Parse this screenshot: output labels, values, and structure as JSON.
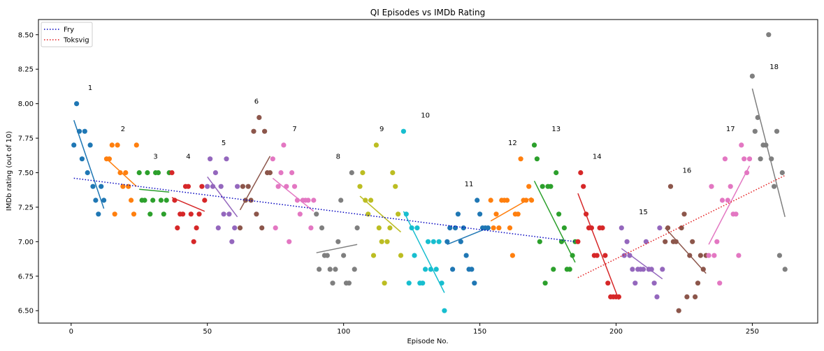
{
  "chart_data": {
    "type": "scatter",
    "title": "QI Episodes vs IMDb Rating",
    "xlabel": "Episode No.",
    "ylabel": "IMDb rating (out of 10)",
    "xlim": [
      -12,
      274
    ],
    "ylim": [
      6.41,
      8.61
    ],
    "xticks": [
      0,
      50,
      100,
      150,
      200,
      250
    ],
    "yticks": [
      6.5,
      6.75,
      7.0,
      7.25,
      7.5,
      7.75,
      8.0,
      8.25,
      8.5
    ],
    "ytick_labels": [
      "6.50",
      "6.75",
      "7.00",
      "7.25",
      "7.50",
      "7.75",
      "8.00",
      "8.25",
      "8.50"
    ],
    "grid": false,
    "legend_position": "top-left",
    "trend_lines": [
      {
        "name": "Fry",
        "color": "#0000bf",
        "style": "dotted",
        "x": [
          1,
          185
        ],
        "y": [
          7.46,
          7.0
        ]
      },
      {
        "name": "Toksvig",
        "color": "#e31a1c",
        "style": "dotted",
        "x": [
          186,
          262
        ],
        "y": [
          6.74,
          7.48
        ]
      }
    ],
    "series": [
      {
        "label": "1",
        "color": "#1f77b4",
        "x": [
          1,
          2,
          3,
          4,
          5,
          6,
          7,
          8,
          9,
          10,
          11,
          12
        ],
        "y": [
          7.7,
          8.0,
          7.8,
          7.6,
          7.8,
          7.5,
          7.7,
          7.4,
          7.3,
          7.2,
          7.4,
          7.3
        ],
        "fit": [
          [
            1,
            7.88
          ],
          [
            12,
            7.24
          ]
        ],
        "label_pos": [
          7,
          8.1
        ]
      },
      {
        "label": "2",
        "color": "#ff7f0e",
        "x": [
          13,
          14,
          15,
          16,
          17,
          18,
          19,
          20,
          21,
          22,
          23,
          24
        ],
        "y": [
          7.6,
          7.6,
          7.7,
          7.2,
          7.7,
          7.5,
          7.4,
          7.5,
          7.4,
          7.3,
          7.2,
          7.7
        ],
        "fit": [
          [
            13,
            7.6
          ],
          [
            24,
            7.4
          ]
        ],
        "label_pos": [
          19,
          7.8
        ]
      },
      {
        "label": "3",
        "color": "#2ca02c",
        "x": [
          25,
          26,
          27,
          28,
          29,
          30,
          31,
          32,
          33,
          34,
          35,
          36
        ],
        "y": [
          7.5,
          7.3,
          7.3,
          7.5,
          7.2,
          7.3,
          7.5,
          7.5,
          7.3,
          7.2,
          7.3,
          7.5
        ],
        "fit": [
          [
            25,
            7.38
          ],
          [
            36,
            7.36
          ]
        ],
        "label_pos": [
          31,
          7.6
        ]
      },
      {
        "label": "4",
        "color": "#d62728",
        "x": [
          37,
          38,
          39,
          40,
          41,
          42,
          43,
          44,
          45,
          46,
          47,
          48,
          49
        ],
        "y": [
          7.5,
          7.3,
          7.1,
          7.2,
          7.2,
          7.4,
          7.4,
          7.2,
          7.0,
          7.1,
          7.2,
          7.4,
          7.3
        ],
        "fit": [
          [
            37,
            7.32
          ],
          [
            49,
            7.22
          ]
        ],
        "label_pos": [
          43,
          7.6
        ]
      },
      {
        "label": "5",
        "color": "#9467bd",
        "x": [
          50,
          51,
          52,
          53,
          54,
          55,
          56,
          57,
          58,
          59,
          60,
          61
        ],
        "y": [
          7.4,
          7.6,
          7.4,
          7.5,
          7.1,
          7.4,
          7.2,
          7.6,
          7.2,
          7.0,
          7.1,
          7.4
        ],
        "fit": [
          [
            50,
            7.47
          ],
          [
            61,
            7.18
          ]
        ],
        "label_pos": [
          56,
          7.7
        ]
      },
      {
        "label": "6",
        "color": "#8c564b",
        "x": [
          62,
          63,
          64,
          65,
          66,
          67,
          68,
          69,
          70,
          71,
          72,
          73
        ],
        "y": [
          7.1,
          7.4,
          7.3,
          7.4,
          7.3,
          7.8,
          7.2,
          7.9,
          7.1,
          7.8,
          7.5,
          7.5
        ],
        "fit": [
          [
            62,
            7.23
          ],
          [
            73,
            7.62
          ]
        ],
        "label_pos": [
          68,
          8.0
        ]
      },
      {
        "label": "7",
        "color": "#e377c2",
        "x": [
          74,
          75,
          76,
          77,
          78,
          79,
          80,
          81,
          82,
          83,
          84,
          85,
          86,
          87,
          88,
          89
        ],
        "y": [
          7.6,
          7.1,
          7.4,
          7.5,
          7.7,
          7.4,
          7.0,
          7.5,
          7.4,
          7.3,
          7.2,
          7.3,
          7.3,
          7.3,
          7.1,
          7.3
        ],
        "fit": [
          [
            74,
            7.46
          ],
          [
            89,
            7.22
          ]
        ],
        "label_pos": [
          82,
          7.8
        ]
      },
      {
        "label": "8",
        "color": "#7f7f7f",
        "x": [
          90,
          91,
          92,
          93,
          94,
          95,
          96,
          97,
          98,
          99,
          100,
          101,
          102,
          103,
          104,
          105
        ],
        "y": [
          7.2,
          6.8,
          7.1,
          6.9,
          6.9,
          6.8,
          6.7,
          6.8,
          7.0,
          7.3,
          6.9,
          6.7,
          6.7,
          7.5,
          6.8,
          7.1
        ],
        "fit": [
          [
            90,
            6.92
          ],
          [
            105,
            6.98
          ]
        ],
        "label_pos": [
          98,
          7.6
        ]
      },
      {
        "label": "9",
        "color": "#bcbd22",
        "x": [
          106,
          107,
          108,
          109,
          110,
          111,
          112,
          113,
          114,
          115,
          116,
          117,
          118,
          119,
          120,
          121
        ],
        "y": [
          7.4,
          7.5,
          7.3,
          7.2,
          7.3,
          6.9,
          7.7,
          7.1,
          7.0,
          6.7,
          7.0,
          7.1,
          7.5,
          7.4,
          7.2,
          6.9
        ],
        "fit": [
          [
            106,
            7.33
          ],
          [
            121,
            7.07
          ]
        ],
        "label_pos": [
          114,
          7.8
        ]
      },
      {
        "label": "10",
        "color": "#17becf",
        "x": [
          122,
          123,
          124,
          125,
          126,
          127,
          128,
          129,
          130,
          131,
          132,
          133,
          134,
          135,
          136,
          137
        ],
        "y": [
          7.8,
          7.2,
          6.7,
          7.1,
          6.9,
          7.1,
          6.7,
          6.7,
          6.8,
          7.0,
          6.8,
          7.0,
          6.8,
          7.0,
          6.7,
          6.5
        ],
        "fit": [
          [
            122,
            7.22
          ],
          [
            137,
            6.63
          ]
        ],
        "label_pos": [
          130,
          7.9
        ]
      },
      {
        "label": "11",
        "color": "#1f77b4",
        "x": [
          138,
          139,
          140,
          141,
          142,
          143,
          144,
          145,
          146,
          147,
          148,
          149,
          150,
          151,
          152,
          153
        ],
        "y": [
          7.0,
          7.1,
          6.8,
          7.1,
          7.2,
          7.0,
          7.1,
          6.9,
          6.8,
          6.8,
          6.7,
          7.3,
          7.2,
          7.1,
          7.1,
          7.1
        ],
        "fit": [
          [
            138,
            6.98
          ],
          [
            153,
            7.1
          ]
        ],
        "label_pos": [
          146,
          7.4
        ]
      },
      {
        "label": "12",
        "color": "#ff7f0e",
        "x": [
          154,
          155,
          156,
          157,
          158,
          159,
          160,
          161,
          162,
          163,
          164,
          165,
          166,
          167,
          168,
          169
        ],
        "y": [
          7.3,
          7.1,
          7.2,
          7.1,
          7.3,
          7.3,
          7.3,
          7.1,
          6.9,
          7.2,
          7.2,
          7.6,
          7.3,
          7.3,
          7.4,
          7.3
        ],
        "fit": [
          [
            154,
            7.15
          ],
          [
            169,
            7.32
          ]
        ],
        "label_pos": [
          162,
          7.7
        ]
      },
      {
        "label": "13",
        "color": "#2ca02c",
        "x": [
          170,
          171,
          172,
          173,
          174,
          175,
          176,
          177,
          178,
          179,
          180,
          181,
          182,
          183,
          184,
          185
        ],
        "y": [
          7.7,
          7.6,
          7.0,
          7.4,
          6.7,
          7.4,
          7.4,
          6.8,
          7.5,
          7.2,
          7.0,
          7.1,
          6.8,
          6.8,
          6.9,
          7.0
        ],
        "fit": [
          [
            170,
            7.44
          ],
          [
            185,
            6.85
          ]
        ],
        "label_pos": [
          178,
          7.8
        ]
      },
      {
        "label": "14",
        "color": "#d62728",
        "x": [
          186,
          187,
          188,
          189,
          190,
          191,
          192,
          193,
          194,
          195,
          196,
          197,
          198,
          199,
          200,
          201
        ],
        "y": [
          7.0,
          7.5,
          7.4,
          7.2,
          7.1,
          7.1,
          6.9,
          6.9,
          7.1,
          7.1,
          6.9,
          6.7,
          6.6,
          6.6,
          6.6,
          6.6
        ],
        "fit": [
          [
            186,
            7.35
          ],
          [
            201,
            6.58
          ]
        ],
        "label_pos": [
          193,
          7.6
        ]
      },
      {
        "label": "15",
        "color": "#9467bd",
        "x": [
          202,
          203,
          204,
          205,
          206,
          207,
          208,
          209,
          210,
          211,
          212,
          213,
          214,
          215,
          216,
          217
        ],
        "y": [
          7.1,
          6.9,
          7.0,
          6.9,
          6.8,
          6.7,
          6.8,
          6.8,
          6.8,
          7.0,
          6.8,
          6.8,
          6.7,
          6.6,
          7.1,
          6.8
        ],
        "fit": [
          [
            202,
            6.95
          ],
          [
            217,
            6.73
          ]
        ],
        "label_pos": [
          210,
          7.2
        ]
      },
      {
        "label": "16",
        "color": "#8c564b",
        "x": [
          218,
          219,
          220,
          221,
          222,
          223,
          224,
          225,
          226,
          227,
          228,
          229,
          230,
          231,
          232,
          233
        ],
        "y": [
          7.0,
          7.1,
          7.4,
          7.0,
          7.0,
          6.5,
          7.1,
          7.2,
          6.6,
          6.9,
          7.0,
          6.6,
          6.7,
          6.9,
          6.8,
          6.9
        ],
        "fit": [
          [
            218,
            7.1
          ],
          [
            233,
            6.77
          ]
        ],
        "label_pos": [
          226,
          7.5
        ]
      },
      {
        "label": "17",
        "color": "#e377c2",
        "x": [
          234,
          235,
          236,
          237,
          238,
          239,
          240,
          241,
          242,
          243,
          244,
          245,
          246,
          247,
          248,
          249
        ],
        "y": [
          6.9,
          7.4,
          6.9,
          7.0,
          6.7,
          7.3,
          7.6,
          7.3,
          7.4,
          7.2,
          7.2,
          6.9,
          7.7,
          7.6,
          7.5,
          7.6
        ],
        "fit": [
          [
            234,
            6.98
          ],
          [
            249,
            7.55
          ]
        ],
        "label_pos": [
          242,
          7.8
        ]
      },
      {
        "label": "18",
        "color": "#7f7f7f",
        "x": [
          250,
          251,
          252,
          253,
          254,
          255,
          256,
          257,
          258,
          259,
          260,
          261,
          262
        ],
        "y": [
          8.2,
          7.8,
          7.9,
          7.6,
          7.7,
          7.7,
          8.5,
          7.6,
          7.4,
          7.8,
          6.9,
          7.5,
          6.8
        ],
        "fit": [
          [
            250,
            8.11
          ],
          [
            262,
            7.18
          ]
        ],
        "label_pos": [
          258,
          8.25
        ]
      }
    ]
  }
}
